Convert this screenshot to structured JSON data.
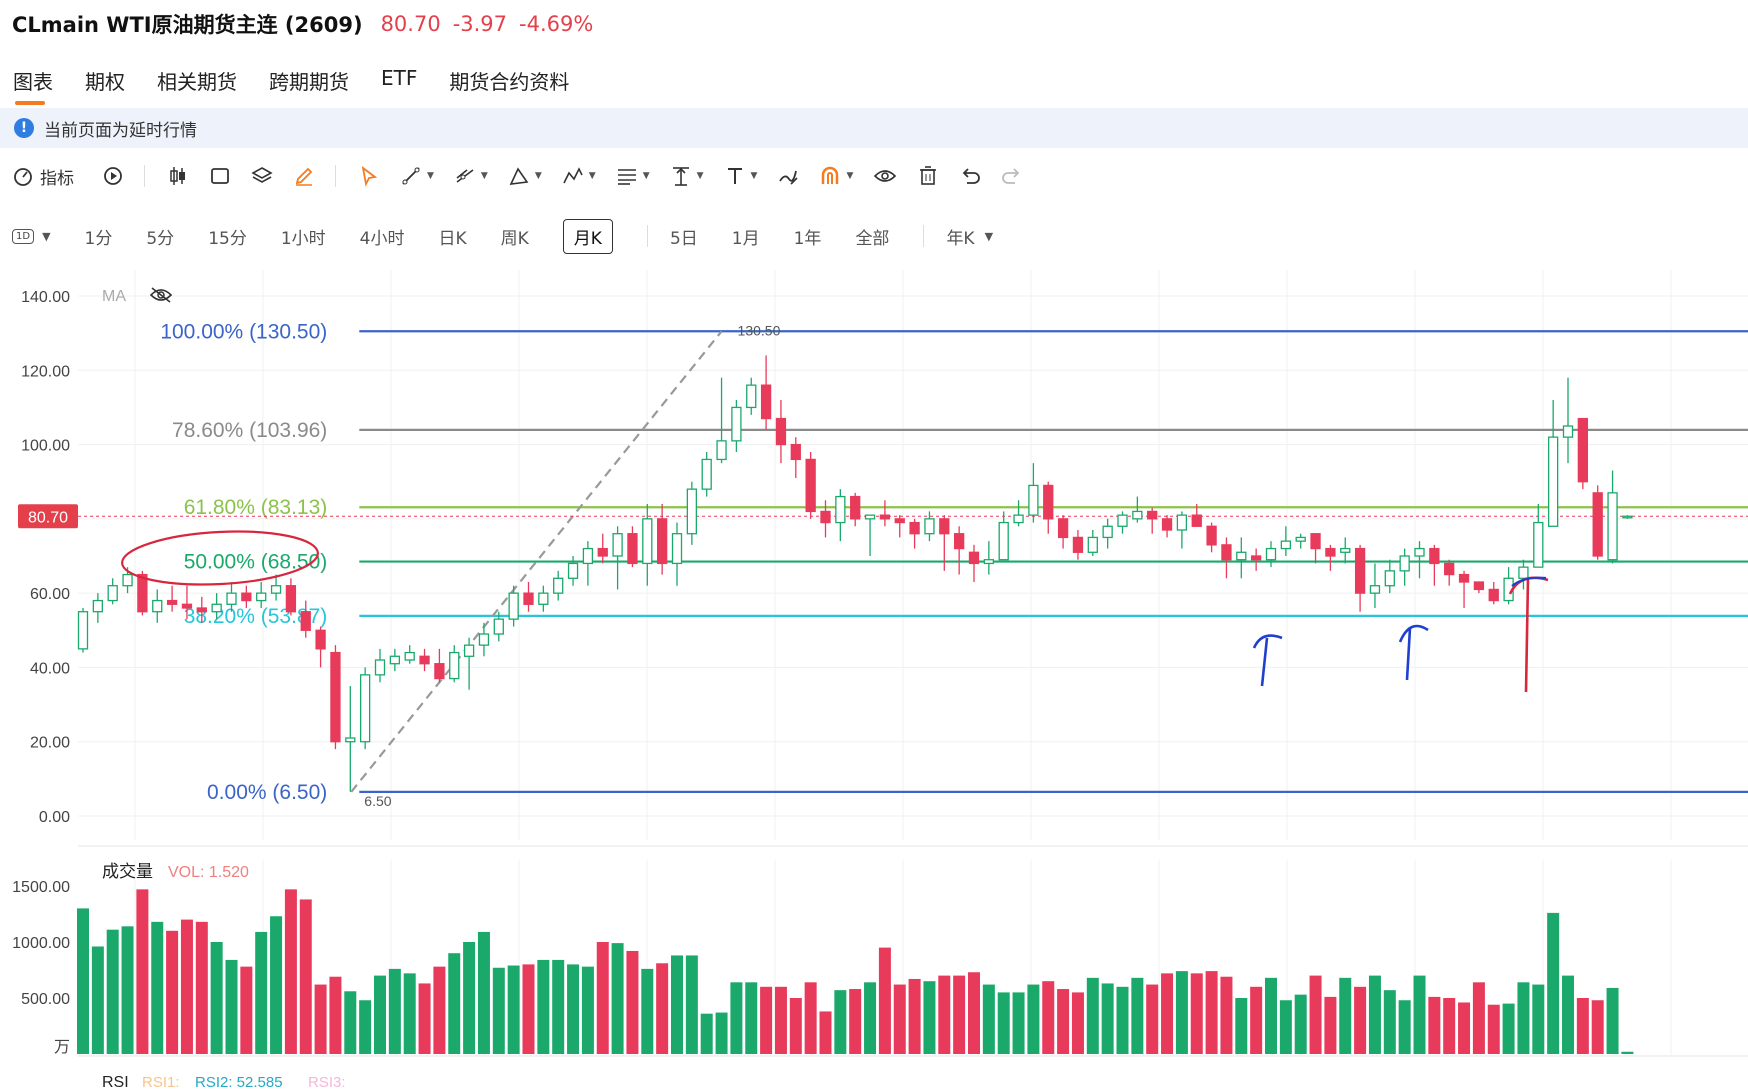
{
  "header": {
    "title": "CLmain WTI原油期货主连 (2609)",
    "price": "80.70",
    "change": "-3.97",
    "change_pct": "-4.69%"
  },
  "tabs": [
    "图表",
    "期权",
    "相关期货",
    "跨期期货",
    "ETF",
    "期货合约资料"
  ],
  "notice": "当前页面为延时行情",
  "toolbar": {
    "indicator_label": "指标",
    "tools": [
      "replay-icon",
      "candle-type-icon",
      "rectangle-icon",
      "layers-icon",
      "brush-icon",
      "cursor-icon",
      "line-tool-icon",
      "multi-line-icon",
      "pitchfork-icon",
      "pattern-icon",
      "fib-icon",
      "measure-icon",
      "text-icon",
      "freehand-icon",
      "magnet-icon",
      "eye-icon",
      "trash-icon",
      "undo-icon",
      "redo-icon"
    ]
  },
  "periods": {
    "interval_badge": "1D",
    "items": [
      "1分",
      "5分",
      "15分",
      "1小时",
      "4小时",
      "日K",
      "周K",
      "月K",
      "5日",
      "1月",
      "1年",
      "全部",
      "年K"
    ],
    "active": "月K"
  },
  "colors": {
    "up": "#1aa96b",
    "down": "#e83a5a",
    "fib100": "#3b64c8",
    "fib786": "#8a8a8a",
    "fib618": "#8bc34a",
    "fib50": "#1aa96b",
    "fib382": "#26c6da",
    "fib0": "#3b64c8"
  },
  "chart_data": {
    "type": "candlestick",
    "price_axis": {
      "ticks": [
        "140.00",
        "120.00",
        "100.00",
        "80.00",
        "60.00",
        "40.00",
        "20.00",
        "0.00"
      ],
      "ylim": [
        0,
        140
      ]
    },
    "ma_label": "MA",
    "last_price_tag": "80.70",
    "fib_levels": [
      {
        "label": "100.00% (130.50)",
        "value": 130.5,
        "color": "#3b64c8"
      },
      {
        "label": "78.60% (103.96)",
        "value": 103.96,
        "color": "#8a8a8a"
      },
      {
        "label": "61.80% (83.13)",
        "value": 83.13,
        "color": "#8bc34a"
      },
      {
        "label": "50.00% (68.50)",
        "value": 68.5,
        "color": "#1aa96b"
      },
      {
        "label": "38.20% (53.87)",
        "value": 53.87,
        "color": "#26c6da"
      },
      {
        "label": "0.00% (6.50)",
        "value": 6.5,
        "color": "#3b64c8"
      }
    ],
    "fib_anchor_high": "130.50",
    "fib_anchor_low": "6.50",
    "candles": [
      [
        45,
        55,
        56,
        44
      ],
      [
        55,
        58,
        60,
        52
      ],
      [
        58,
        62,
        64,
        57
      ],
      [
        62,
        65,
        67,
        60
      ],
      [
        65,
        55,
        66,
        54
      ],
      [
        55,
        58,
        61,
        52
      ],
      [
        58,
        57,
        62,
        55
      ],
      [
        57,
        56,
        62,
        53
      ],
      [
        56,
        55,
        59,
        52
      ],
      [
        55,
        57,
        60,
        53
      ],
      [
        57,
        60,
        63,
        55
      ],
      [
        60,
        58,
        62,
        56
      ],
      [
        58,
        60,
        63,
        56
      ],
      [
        60,
        62,
        65,
        58
      ],
      [
        62,
        55,
        64,
        54
      ],
      [
        55,
        50,
        58,
        48
      ],
      [
        50,
        45,
        51,
        40
      ],
      [
        44,
        20,
        46,
        18
      ],
      [
        20,
        21,
        35,
        6.5
      ],
      [
        20,
        38,
        40,
        18
      ],
      [
        38,
        42,
        45,
        36
      ],
      [
        41,
        43,
        45,
        39
      ],
      [
        42,
        44,
        46,
        41
      ],
      [
        43,
        41,
        45,
        39
      ],
      [
        41,
        37,
        45,
        36
      ],
      [
        37,
        44,
        46,
        36
      ],
      [
        43,
        46,
        48,
        34
      ],
      [
        46,
        49,
        52,
        43
      ],
      [
        49,
        53,
        55,
        47
      ],
      [
        53,
        60,
        62,
        51
      ],
      [
        60,
        57,
        63,
        55
      ],
      [
        57,
        60,
        62,
        55
      ],
      [
        60,
        64,
        66,
        58
      ],
      [
        64,
        68,
        70,
        62
      ],
      [
        68,
        72,
        74,
        62
      ],
      [
        72,
        70,
        76,
        68
      ],
      [
        70,
        76,
        78,
        61
      ],
      [
        76,
        68,
        78,
        67
      ],
      [
        68,
        80,
        84,
        62
      ],
      [
        80,
        68,
        84,
        65
      ],
      [
        68,
        76,
        79,
        62
      ],
      [
        76,
        88,
        90,
        73
      ],
      [
        88,
        96,
        98,
        86
      ],
      [
        96,
        101,
        118,
        95
      ],
      [
        101,
        110,
        112,
        98
      ],
      [
        110,
        116,
        118,
        108
      ],
      [
        116,
        107,
        124,
        104
      ],
      [
        107,
        100,
        112,
        95
      ],
      [
        100,
        96,
        102,
        91
      ],
      [
        96,
        82,
        98,
        80
      ],
      [
        82,
        79,
        85,
        75
      ],
      [
        79,
        86,
        88,
        74
      ],
      [
        86,
        80,
        87,
        78
      ],
      [
        80,
        81,
        81,
        70
      ],
      [
        81,
        80,
        85,
        78
      ],
      [
        80,
        79,
        81,
        75
      ],
      [
        79,
        76,
        80,
        72
      ],
      [
        76,
        80,
        82,
        74
      ],
      [
        80,
        76,
        81,
        66
      ],
      [
        76,
        72,
        78,
        65
      ],
      [
        71,
        68,
        73,
        63
      ],
      [
        68,
        69,
        74,
        65
      ],
      [
        69,
        79,
        82,
        69
      ],
      [
        79,
        81,
        85,
        78
      ],
      [
        81,
        89,
        95,
        79
      ],
      [
        89,
        80,
        90,
        76
      ],
      [
        80,
        75,
        81,
        72
      ],
      [
        75,
        71,
        77,
        69
      ],
      [
        71,
        75,
        77,
        70
      ],
      [
        75,
        78,
        80,
        72
      ],
      [
        78,
        81,
        82,
        76
      ],
      [
        80,
        82,
        86,
        79
      ],
      [
        82,
        80,
        83,
        76
      ],
      [
        80,
        77,
        81,
        75
      ],
      [
        77,
        81,
        82,
        72
      ],
      [
        81,
        78,
        84,
        78
      ],
      [
        78,
        73,
        79,
        71
      ],
      [
        73,
        69,
        75,
        64
      ],
      [
        69,
        71,
        75,
        64
      ],
      [
        70,
        69,
        72,
        66
      ],
      [
        69,
        72,
        74,
        67
      ],
      [
        72,
        74,
        78,
        70
      ],
      [
        74,
        75,
        76,
        72
      ],
      [
        76,
        72,
        76,
        68
      ],
      [
        72,
        70,
        73,
        66
      ],
      [
        71,
        72,
        75,
        68
      ],
      [
        72,
        60,
        73,
        55
      ],
      [
        60,
        62,
        68,
        56
      ],
      [
        62,
        66,
        69,
        60
      ],
      [
        66,
        70,
        72,
        62
      ],
      [
        70,
        72,
        74,
        64
      ],
      [
        72,
        68,
        73,
        62
      ],
      [
        68,
        65,
        69,
        62
      ],
      [
        65,
        63,
        66,
        56
      ],
      [
        63,
        61,
        63,
        60
      ],
      [
        61,
        58,
        63,
        57
      ],
      [
        58,
        64,
        67,
        57
      ],
      [
        64,
        67,
        69,
        61
      ],
      [
        67,
        79,
        84,
        69
      ],
      [
        78,
        102,
        112,
        78
      ],
      [
        102,
        105,
        118,
        95
      ],
      [
        107,
        90,
        107,
        88
      ],
      [
        87,
        70,
        89,
        69
      ],
      [
        69,
        87,
        93,
        68
      ],
      [
        80.7,
        80.7,
        81,
        80
      ]
    ],
    "volume_label": "成交量",
    "volume_readout": "VOL: 1.520",
    "volume_axis": {
      "ticks": [
        "1500.00",
        "1000.00",
        "500.00"
      ],
      "unit": "万",
      "ylim": [
        0,
        1500
      ]
    },
    "volume": [
      1300,
      960,
      1110,
      1140,
      1470,
      1180,
      1100,
      1200,
      1180,
      1000,
      840,
      780,
      1090,
      1230,
      1470,
      1380,
      620,
      690,
      560,
      480,
      700,
      760,
      720,
      630,
      780,
      900,
      1000,
      1090,
      770,
      790,
      800,
      840,
      840,
      800,
      780,
      1000,
      990,
      920,
      760,
      810,
      880,
      880,
      360,
      370,
      640,
      640,
      600,
      600,
      500,
      640,
      380,
      570,
      580,
      640,
      950,
      620,
      670,
      650,
      700,
      700,
      730,
      620,
      550,
      550,
      620,
      650,
      580,
      550,
      680,
      630,
      600,
      680,
      620,
      720,
      740,
      720,
      740,
      690,
      500,
      600,
      680,
      480,
      530,
      700,
      510,
      680,
      600,
      700,
      570,
      480,
      700,
      510,
      500,
      460,
      640,
      440,
      450,
      640,
      620,
      1260,
      700,
      500,
      480,
      590,
      20
    ],
    "rsi_label": "RSI",
    "rsi1_label": "RSI1:",
    "rsi2_label": "RSI2: 52.585",
    "rsi3_label": "RSI3:"
  }
}
